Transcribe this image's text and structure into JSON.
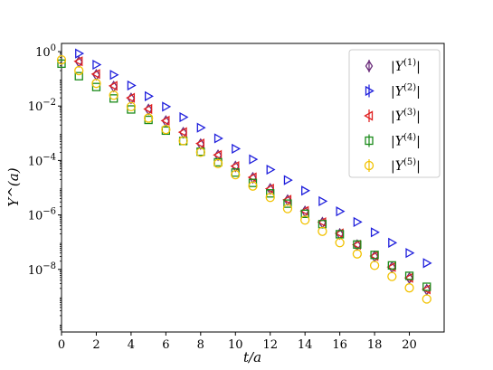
{
  "chart_data": {
    "type": "scatter",
    "title": "",
    "xlabel": "t/a",
    "ylabel": "Y^(a)",
    "xlim": [
      0,
      22
    ],
    "ylim_log10": [
      -10.3,
      0.3
    ],
    "yscale": "log",
    "grid": false,
    "legend_position": "top-right",
    "xticks": [
      0,
      2,
      4,
      6,
      8,
      10,
      12,
      14,
      16,
      18,
      20
    ],
    "yticks_exp": [
      0,
      -2,
      -4,
      -6,
      -8
    ],
    "series": [
      {
        "name": "|Y^(1)|",
        "legend_base": "|Y",
        "legend_sup": "(1)",
        "legend_tail": "|",
        "marker": "diamond",
        "color": "#6b2d7b",
        "x": [
          1,
          2,
          3,
          4,
          5,
          6,
          7,
          8,
          9,
          10,
          11,
          12,
          13,
          14,
          15,
          16,
          17,
          18,
          19,
          20,
          21
        ],
        "y": [
          0.42,
          0.14,
          0.052,
          0.019,
          0.0075,
          0.0028,
          0.00105,
          0.0004,
          0.000155,
          6e-05,
          2.3e-05,
          9e-06,
          3.5e-06,
          1.35e-06,
          5.2e-07,
          2e-07,
          7.8e-08,
          3e-08,
          1.2e-08,
          4.8e-09,
          1.8e-09
        ]
      },
      {
        "name": "|Y^(2)|",
        "legend_base": "|Y",
        "legend_sup": "(2)",
        "legend_tail": "|",
        "marker": "triangle-right",
        "color": "#1f1fdc",
        "x": [
          1,
          2,
          3,
          4,
          5,
          6,
          7,
          8,
          9,
          10,
          11,
          12,
          13,
          14,
          15,
          16,
          17,
          18,
          19,
          20,
          21
        ],
        "y": [
          0.85,
          0.33,
          0.14,
          0.057,
          0.023,
          0.0095,
          0.0039,
          0.0016,
          0.00065,
          0.00027,
          0.00011,
          4.6e-05,
          1.9e-05,
          7.8e-06,
          3.2e-06,
          1.35e-06,
          5.5e-07,
          2.3e-07,
          9.5e-08,
          4e-08,
          1.7e-08
        ]
      },
      {
        "name": "|Y^(3)|",
        "legend_base": "|Y",
        "legend_sup": "(3)",
        "legend_tail": "|",
        "marker": "triangle-left",
        "color": "#e01f1f",
        "x": [
          1,
          2,
          3,
          4,
          5,
          6,
          7,
          8,
          9,
          10,
          11,
          12,
          13,
          14,
          15,
          16,
          17,
          18,
          19,
          20,
          21
        ],
        "y": [
          0.44,
          0.15,
          0.055,
          0.02,
          0.0078,
          0.0029,
          0.0011,
          0.00042,
          0.00016,
          6.2e-05,
          2.4e-05,
          9.2e-06,
          3.6e-06,
          1.4e-06,
          5.4e-07,
          2.1e-07,
          8e-08,
          3.1e-08,
          1.22e-08,
          4.9e-09,
          1.85e-09
        ]
      },
      {
        "name": "|Y^(4)|",
        "legend_base": "|Y",
        "legend_sup": "(4)",
        "legend_tail": "|",
        "marker": "square",
        "color": "#1a8a1a",
        "x": [
          0,
          1,
          2,
          3,
          4,
          5,
          6,
          7,
          8,
          9,
          10,
          11,
          12,
          13,
          14,
          15,
          16,
          17,
          18,
          19,
          20,
          21
        ],
        "y": [
          0.36,
          0.125,
          0.05,
          0.019,
          0.0075,
          0.0031,
          0.00125,
          0.00052,
          0.00021,
          8.6e-05,
          3.6e-05,
          1.5e-05,
          6.2e-06,
          2.6e-06,
          1.1e-06,
          4.6e-07,
          1.95e-07,
          8.2e-08,
          3.4e-08,
          1.4e-08,
          5.8e-09,
          2.3e-09
        ]
      },
      {
        "name": "|Y^(5)|",
        "legend_base": "|Y",
        "legend_sup": "(5)",
        "legend_tail": "|",
        "marker": "circle",
        "color": "#f2c200",
        "x": [
          0,
          1,
          2,
          3,
          4,
          5,
          6,
          7,
          8,
          9,
          10,
          11,
          12,
          13,
          14,
          15,
          16,
          17,
          18,
          19,
          20,
          21
        ],
        "y": [
          0.5,
          0.2,
          0.068,
          0.025,
          0.0095,
          0.0036,
          0.00138,
          0.00053,
          0.0002,
          7.7e-05,
          3e-05,
          1.15e-05,
          4.4e-06,
          1.7e-06,
          6.5e-07,
          2.5e-07,
          9.6e-08,
          3.7e-08,
          1.4e-08,
          5.5e-09,
          2.1e-09,
          8.2e-10
        ]
      }
    ]
  }
}
